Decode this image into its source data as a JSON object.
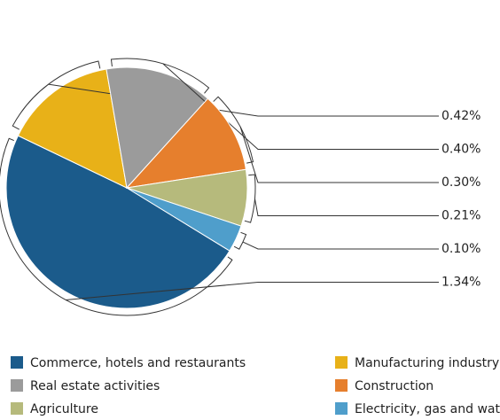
{
  "chart_data": {
    "type": "pie",
    "categories": [
      "Commerce, hotels and restaurants",
      "Manufacturing industry",
      "Real estate activities",
      "Construction",
      "Agriculture",
      "Electricity, gas and water"
    ],
    "values": [
      1.34,
      0.42,
      0.4,
      0.3,
      0.21,
      0.1
    ],
    "value_labels": [
      "1.34%",
      "0.42%",
      "0.40%",
      "0.30%",
      "0.21%",
      "0.10%"
    ],
    "colors": [
      "#1b5b8b",
      "#e8b118",
      "#9b9b9b",
      "#e67f2d",
      "#b6ba7c",
      "#4f9ecb"
    ]
  }
}
